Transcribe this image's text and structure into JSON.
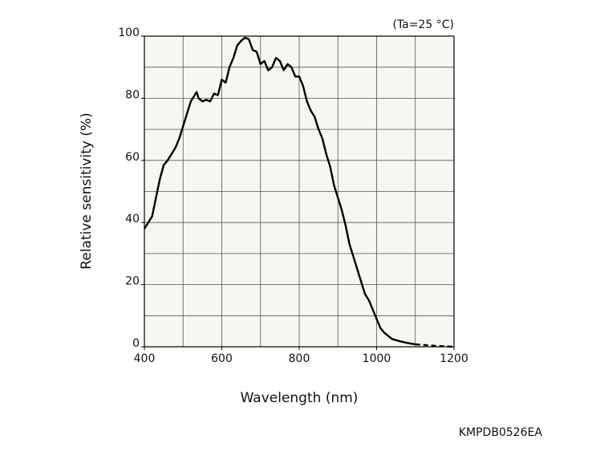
{
  "chart_data": {
    "type": "line",
    "annotation": "(Ta=25 °C)",
    "xlabel": "Wavelength (nm)",
    "ylabel": "Relative sensitivity (%)",
    "footer": "KMPDB0526EA",
    "xlim": [
      400,
      1200
    ],
    "ylim": [
      0,
      100
    ],
    "xticks": [
      400,
      600,
      800,
      1000,
      1200
    ],
    "yticks": [
      0,
      20,
      40,
      60,
      80,
      100
    ],
    "xgrid": [
      400,
      500,
      600,
      700,
      800,
      900,
      1000,
      1100,
      1200
    ],
    "ygrid": [
      0,
      10,
      20,
      30,
      40,
      50,
      60,
      70,
      80,
      90,
      100
    ],
    "grid": true,
    "plot_background": "#f7f6f0",
    "series": [
      {
        "color": "#000000",
        "dashed": false,
        "x": [
          400,
          410,
          420,
          430,
          440,
          450,
          460,
          470,
          480,
          490,
          500,
          510,
          520,
          530,
          535,
          540,
          550,
          560,
          570,
          580,
          590,
          600,
          610,
          620,
          630,
          640,
          650,
          660,
          670,
          680,
          690,
          700,
          710,
          720,
          730,
          740,
          750,
          760,
          770,
          780,
          790,
          800,
          810,
          820,
          830,
          840,
          850,
          860,
          870,
          880,
          890,
          900,
          910,
          920,
          930,
          940,
          950,
          960,
          970,
          980,
          990,
          1000,
          1010,
          1020,
          1040,
          1060,
          1080,
          1100
        ],
        "values": [
          38,
          40,
          42,
          48,
          54,
          58.5,
          60,
          62,
          64,
          67,
          71,
          75,
          79,
          81,
          82,
          80,
          79,
          79.5,
          79,
          81.5,
          81,
          86,
          85,
          90,
          93,
          97,
          98.5,
          99.5,
          99,
          95.5,
          95,
          91,
          92,
          89,
          90,
          93,
          92,
          89,
          91,
          90,
          87,
          87,
          84,
          79,
          76,
          74,
          70,
          67,
          62,
          58,
          52,
          48,
          44,
          39,
          33,
          29,
          25,
          21,
          17,
          15,
          12,
          9,
          6,
          4.5,
          2.5,
          1.8,
          1.2,
          0.8
        ]
      },
      {
        "color": "#000000",
        "dashed": true,
        "x": [
          1100,
          1150,
          1200
        ],
        "values": [
          0.8,
          0.3,
          0
        ]
      }
    ]
  }
}
